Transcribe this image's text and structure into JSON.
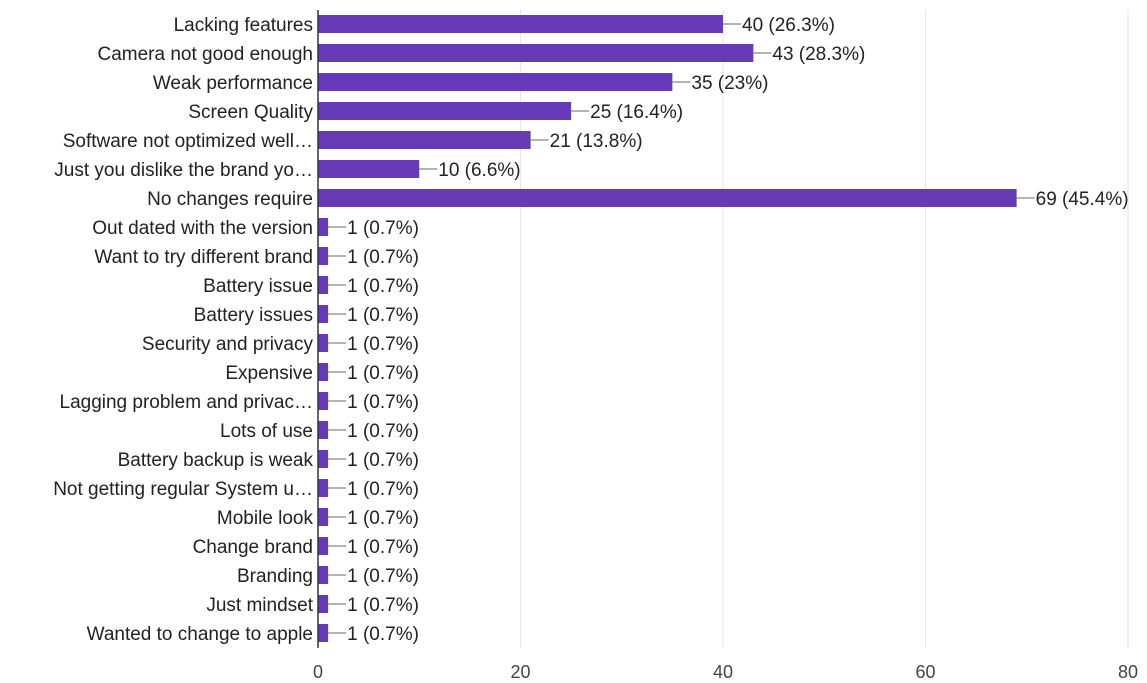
{
  "chart_data": {
    "type": "bar",
    "orientation": "horizontal",
    "categories": [
      "Lacking features",
      "Camera not good enough",
      "Weak performance",
      "Screen Quality",
      "Software not optimized well…",
      "Just you dislike the brand yo…",
      "No changes require",
      "Out dated with the version",
      "Want to try different brand",
      "Battery issue",
      "Battery issues",
      "Security and privacy",
      "Expensive",
      "Lagging problem and privac…",
      "Lots of use",
      "Battery backup is weak",
      "Not getting regular System u…",
      "Mobile look",
      "Change brand",
      "Branding",
      "Just mindset",
      "Wanted to change to apple"
    ],
    "values": [
      40,
      43,
      35,
      25,
      21,
      10,
      69,
      1,
      1,
      1,
      1,
      1,
      1,
      1,
      1,
      1,
      1,
      1,
      1,
      1,
      1,
      1
    ],
    "value_labels": [
      "40 (26.3%)",
      "43 (28.3%)",
      "35 (23%)",
      "25 (16.4%)",
      "21 (13.8%)",
      "10 (6.6%)",
      "69 (45.4%)",
      "1 (0.7%)",
      "1 (0.7%)",
      "1 (0.7%)",
      "1 (0.7%)",
      "1 (0.7%)",
      "1 (0.7%)",
      "1 (0.7%)",
      "1 (0.7%)",
      "1 (0.7%)",
      "1 (0.7%)",
      "1 (0.7%)",
      "1 (0.7%)",
      "1 (0.7%)",
      "1 (0.7%)",
      "1 (0.7%)"
    ],
    "xlim": [
      0,
      80
    ],
    "xticks": [
      0,
      20,
      40,
      60,
      80
    ],
    "xtick_labels": [
      "0",
      "20",
      "40",
      "60",
      "80"
    ],
    "grid": true,
    "bar_color": "#673ab7",
    "title": "",
    "xlabel": "",
    "ylabel": ""
  }
}
